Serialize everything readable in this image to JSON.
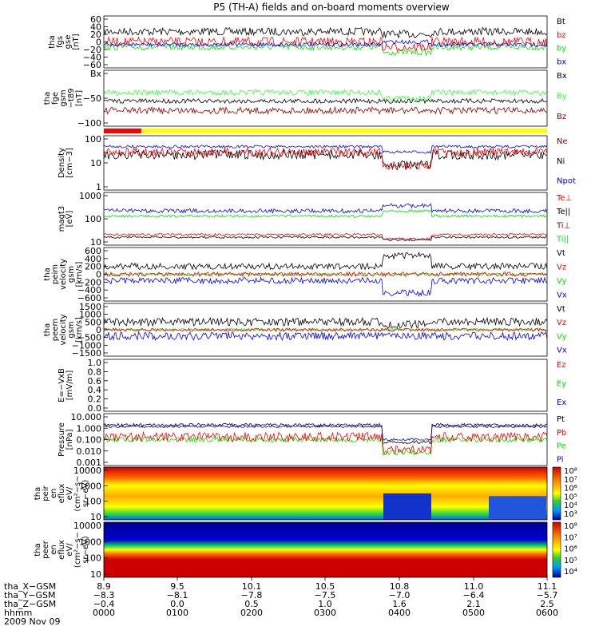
{
  "title": "P5 (TH-A) fields and on-board moments overview",
  "colors": {
    "black": "#000000",
    "red": "#ff0000",
    "green": "#00e600",
    "blue": "#0000ff",
    "darkred": "#8b0000",
    "lightgreen": "#33ff33",
    "yellow": "#ffff00"
  },
  "panels": [
    {
      "id": "fgs",
      "label_lines": [
        "tha",
        "fgs",
        "gse",
        "[nT]"
      ],
      "ticks": [
        "60",
        "40",
        "20",
        "0",
        "−20",
        "−40",
        "−60"
      ],
      "ylim": [
        -60,
        60
      ],
      "legend": [
        {
          "text": "Bt",
          "color": "black"
        },
        {
          "text": "bz",
          "color": "red"
        },
        {
          "text": "by",
          "color": "green"
        },
        {
          "text": "bx",
          "color": "blue"
        }
      ]
    },
    {
      "id": "fge",
      "label_lines": [
        "tha",
        "fge",
        "gsm",
        "−t89",
        "[nT]"
      ],
      "ticks": [
        "Bx",
        "−50",
        "−100"
      ],
      "ylim": [
        -130,
        60
      ],
      "legend": [
        {
          "text": "Bx",
          "color": "black"
        },
        {
          "text": "By",
          "color": "lightgreen"
        },
        {
          "text": "Bz",
          "color": "darkred"
        }
      ]
    },
    {
      "id": "density",
      "label_lines": [
        "Density",
        "[cm−3]"
      ],
      "ticks": [
        "100",
        "10",
        "1"
      ],
      "ylim": [
        1,
        100
      ],
      "legend": [
        {
          "text": "Ne",
          "color": "darkred"
        },
        {
          "text": "Ni",
          "color": "black"
        },
        {
          "text": "Npot",
          "color": "blue"
        }
      ]
    },
    {
      "id": "temp",
      "label_lines": [
        "magt3",
        "[eV]"
      ],
      "ticks": [
        "1000",
        "100",
        "10"
      ],
      "ylim": [
        10,
        3000
      ],
      "legend": [
        {
          "text": "Te⊥",
          "color": "red"
        },
        {
          "text": "Te||",
          "color": "black"
        },
        {
          "text": "Ti⊥",
          "color": "darkred"
        },
        {
          "text": "Ti||",
          "color": "green"
        }
      ]
    },
    {
      "id": "vel_i",
      "label_lines": [
        "tha",
        "peim",
        "velocity",
        "gsm",
        "[km/s]"
      ],
      "ticks": [
        "600",
        "400",
        "200",
        "0",
        "−200",
        "−400",
        "−600"
      ],
      "ylim": [
        -600,
        600
      ],
      "legend": [
        {
          "text": "Vt",
          "color": "black"
        },
        {
          "text": "Vz",
          "color": "red"
        },
        {
          "text": "Vy",
          "color": "green"
        },
        {
          "text": "Vx",
          "color": "blue"
        }
      ]
    },
    {
      "id": "vel_e",
      "label_lines": [
        "tha",
        "peem",
        "velocity",
        "gsm",
        "[km/s]"
      ],
      "ticks": [
        "1500",
        "1000",
        "500",
        "0",
        "−500",
        "−1000",
        "−1500"
      ],
      "ylim": [
        -1500,
        1500
      ],
      "legend": [
        {
          "text": "Vt",
          "color": "black"
        },
        {
          "text": "Vz",
          "color": "red"
        },
        {
          "text": "Vy",
          "color": "green"
        },
        {
          "text": "Vx",
          "color": "blue"
        }
      ]
    },
    {
      "id": "efield",
      "label_lines": [
        "E=−VxB",
        "[mV/m]"
      ],
      "ticks": [
        "1.0",
        "0.8",
        "0.6",
        "0.4",
        "0.2",
        "0.0"
      ],
      "ylim": [
        0,
        1
      ],
      "legend": [
        {
          "text": "Ez",
          "color": "red"
        },
        {
          "text": "Ey",
          "color": "green"
        },
        {
          "text": "Ex",
          "color": "blue"
        }
      ]
    },
    {
      "id": "pressure",
      "label_lines": [
        "Pressure",
        "[nPa]"
      ],
      "ticks": [
        "10.000",
        "1.000",
        "0.100",
        "0.010",
        "0.001"
      ],
      "ylim": [
        0.001,
        10
      ],
      "legend": [
        {
          "text": "Pt",
          "color": "black"
        },
        {
          "text": "Pb",
          "color": "red"
        },
        {
          "text": "Pe",
          "color": "green"
        },
        {
          "text": "Pi",
          "color": "blue"
        }
      ]
    },
    {
      "id": "ion_spec",
      "label_lines": [
        "tha",
        "peir",
        "en",
        "eflux",
        "eV/",
        "(cm²−s−",
        "sr−eV)"
      ],
      "ticks": [
        "10000",
        "1000",
        "100",
        "10"
      ],
      "ylim": [
        10,
        20000
      ],
      "colorbar": [
        "10⁸",
        "10⁷",
        "10⁶",
        "10⁵",
        "10⁴",
        "10³"
      ]
    },
    {
      "id": "ele_spec",
      "label_lines": [
        "tha",
        "peer",
        "en",
        "eflux",
        "eV/",
        "(cm²−s−",
        "sr−eV)"
      ],
      "ticks": [
        "10000",
        "1000",
        "100",
        "10"
      ],
      "ylim": [
        10,
        20000
      ],
      "colorbar": [
        "10⁸",
        "10⁷",
        "10⁶",
        "10⁵",
        "10⁴"
      ]
    }
  ],
  "footer": {
    "row_labels": [
      "tha_X−GSM",
      "tha_Y−GSM",
      "tha_Z−GSM",
      "hhmm",
      "2009 Nov 09"
    ],
    "columns": [
      {
        "x": "8.9",
        "y": "−8.3",
        "z": "−0.4",
        "t": "0000"
      },
      {
        "x": "9.5",
        "y": "−8.1",
        "z": "0.0",
        "t": "0100"
      },
      {
        "x": "10.1",
        "y": "−7.8",
        "z": "0.5",
        "t": "0200"
      },
      {
        "x": "10.5",
        "y": "−7.5",
        "z": "1.0",
        "t": "0300"
      },
      {
        "x": "10.8",
        "y": "−7.0",
        "z": "1.6",
        "t": "0400"
      },
      {
        "x": "11.0",
        "y": "−6.4",
        "z": "2.1",
        "t": "0500"
      },
      {
        "x": "11.1",
        "y": "−5.7",
        "z": "2.5",
        "t": "0600"
      }
    ]
  },
  "chart_data": {
    "type": "line",
    "title": "P5 (TH-A) fields and on-board moments overview",
    "xlabel": "hhmm",
    "x_ticks": [
      "0000",
      "0100",
      "0200",
      "0300",
      "0400",
      "0500",
      "0600"
    ],
    "date": "2009 Nov 09",
    "series_summary": [
      {
        "name": "Bt",
        "values": [
          25,
          30,
          28,
          32,
          5,
          15,
          20
        ]
      },
      {
        "name": "Ne",
        "values": [
          40,
          30,
          20,
          25,
          10,
          15,
          12
        ]
      },
      {
        "name": "Pt",
        "values": [
          1.0,
          0.9,
          1.0,
          0.9,
          0.05,
          0.3,
          0.2
        ]
      }
    ]
  }
}
